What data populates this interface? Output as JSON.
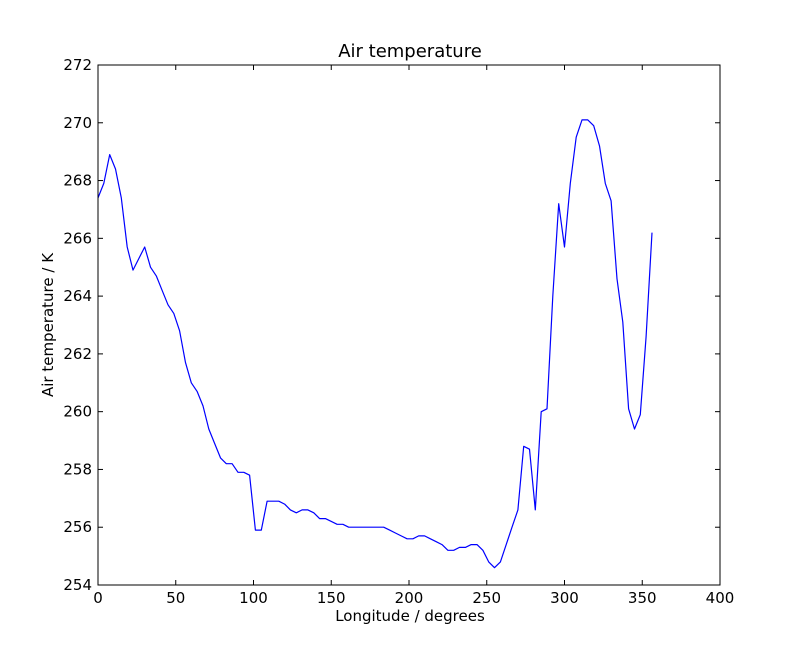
{
  "chart_data": {
    "type": "line",
    "title": "Air temperature",
    "xlabel": "Longitude / degrees",
    "ylabel": "Air temperature / K",
    "xlim": [
      0,
      400
    ],
    "ylim": [
      254,
      272
    ],
    "xticks": [
      0,
      50,
      100,
      150,
      200,
      250,
      300,
      350,
      400
    ],
    "yticks": [
      254,
      256,
      258,
      260,
      262,
      264,
      266,
      268,
      270,
      272
    ],
    "grid": false,
    "legend": null,
    "series": [
      {
        "name": "Air temperature",
        "color": "#0000ff",
        "x": [
          0,
          3.75,
          7.5,
          11.25,
          15,
          18.75,
          22.5,
          26.25,
          30,
          33.75,
          37.5,
          41.25,
          45,
          48.75,
          52.5,
          56.25,
          60,
          63.75,
          67.5,
          71.25,
          75,
          78.75,
          82.5,
          86.25,
          90,
          93.75,
          97.5,
          101.25,
          105,
          108.75,
          112.5,
          116.25,
          120,
          123.75,
          127.5,
          131.25,
          135,
          138.75,
          142.5,
          146.25,
          150,
          153.75,
          157.5,
          161.25,
          165,
          168.75,
          172.5,
          176.25,
          180,
          183.75,
          187.5,
          191.25,
          195,
          198.75,
          202.5,
          206.25,
          210,
          213.75,
          217.5,
          221.25,
          225,
          228.75,
          232.5,
          236.25,
          240,
          243.75,
          247.5,
          251.25,
          255,
          258.75,
          262.5,
          266.25,
          270,
          273.75,
          277.5,
          281.25,
          285,
          288.75,
          292.5,
          296.25,
          300,
          303.75,
          307.5,
          311.25,
          315,
          318.75,
          322.5,
          326.25,
          330,
          333.75,
          337.5,
          341.25,
          345,
          348.75,
          352.5,
          356.25
        ],
        "y": [
          267.4,
          267.9,
          268.9,
          268.4,
          267.4,
          265.7,
          264.9,
          265.3,
          265.7,
          265.0,
          264.7,
          264.2,
          263.7,
          263.4,
          262.8,
          261.7,
          261.0,
          260.7,
          260.2,
          259.4,
          258.9,
          258.4,
          258.2,
          258.2,
          257.9,
          257.9,
          257.8,
          255.9,
          255.9,
          256.9,
          256.9,
          256.9,
          256.8,
          256.6,
          256.5,
          256.6,
          256.6,
          256.5,
          256.3,
          256.3,
          256.2,
          256.1,
          256.1,
          256.0,
          256.0,
          256.0,
          256.0,
          256.0,
          256.0,
          256.0,
          255.9,
          255.8,
          255.7,
          255.6,
          255.6,
          255.7,
          255.7,
          255.6,
          255.5,
          255.4,
          255.2,
          255.2,
          255.3,
          255.3,
          255.4,
          255.4,
          255.2,
          254.8,
          254.6,
          254.8,
          255.4,
          256.0,
          256.6,
          258.8,
          258.7,
          256.6,
          260.0,
          260.1,
          264.0,
          267.2,
          265.7,
          267.9,
          269.5,
          270.1,
          270.1,
          269.9,
          269.2,
          267.9,
          267.3,
          264.6,
          263.1,
          260.1,
          259.4,
          259.9,
          262.6,
          266.2
        ]
      }
    ]
  }
}
